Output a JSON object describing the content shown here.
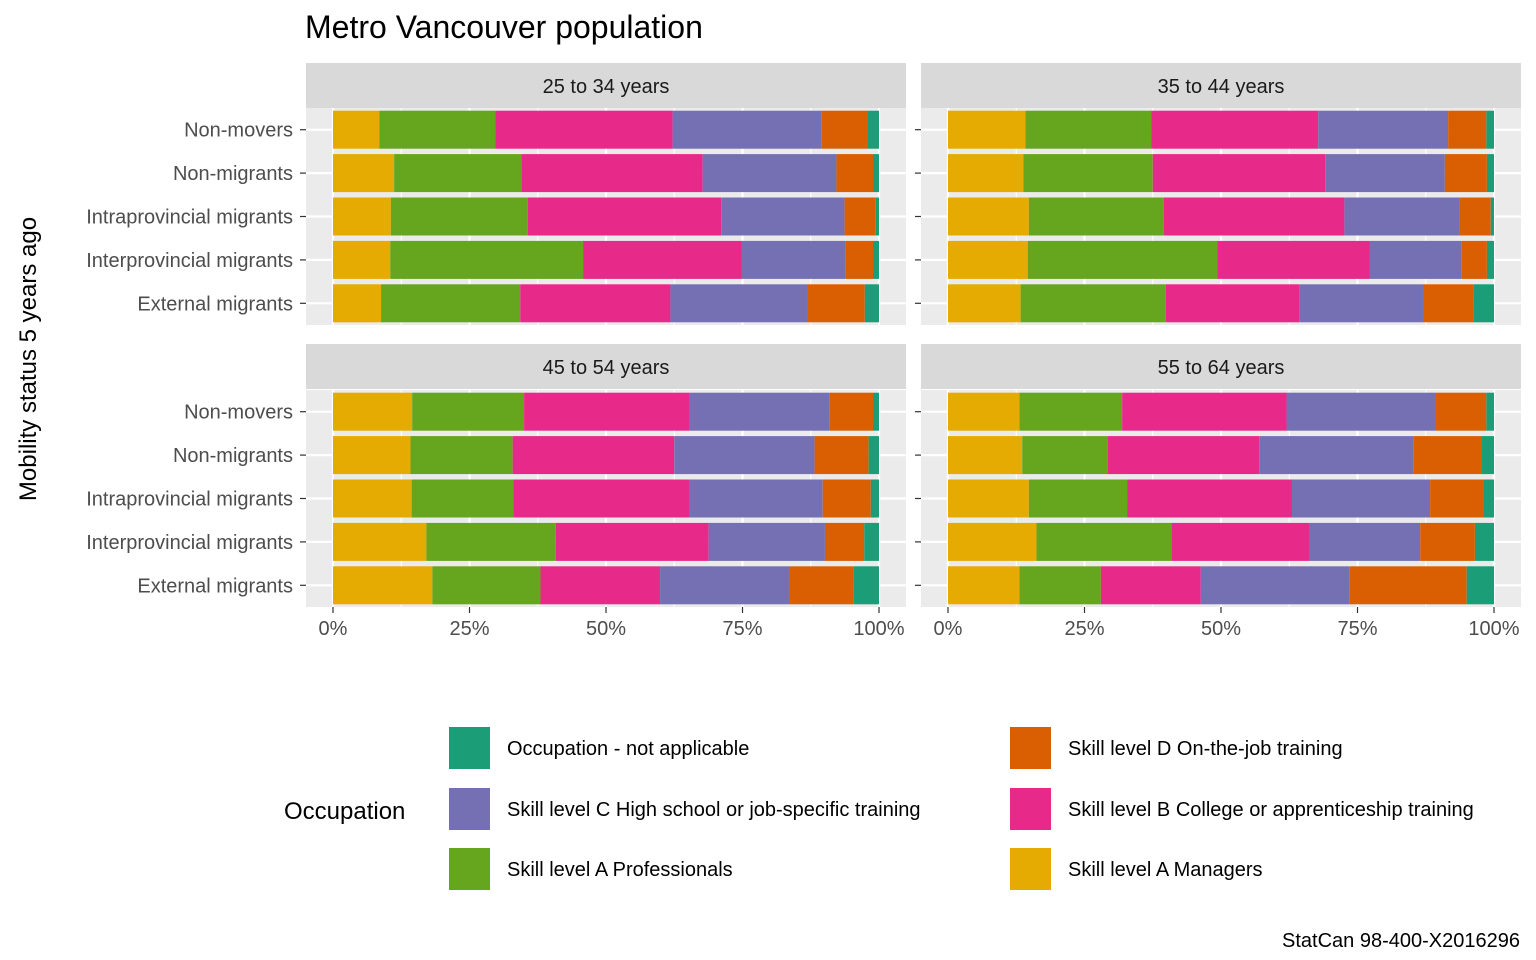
{
  "chart_data": {
    "type": "bar",
    "orientation": "horizontal",
    "stacked": true,
    "normalized": true,
    "title": "Metro Vancouver population",
    "ylabel": "Mobility status 5 years ago",
    "xlabel": "",
    "xlim": [
      0,
      1
    ],
    "x_tick_labels": [
      "0%",
      "25%",
      "50%",
      "75%",
      "100%"
    ],
    "x_tick_values": [
      0,
      0.25,
      0.5,
      0.75,
      1
    ],
    "caption": "StatCan 98-400-X2016296",
    "categories": [
      "Non-movers",
      "Non-migrants",
      "Intraprovincial migrants",
      "Interprovincial migrants",
      "External migrants"
    ],
    "series_names": [
      "Skill level A Managers",
      "Skill level A Professionals",
      "Skill level B College or apprenticeship training",
      "Skill level C High school or job-specific training",
      "Skill level D On-the-job training",
      "Occupation - not applicable"
    ],
    "series_colors": [
      "#E6AB02",
      "#66A61E",
      "#E7298A",
      "#7570B3",
      "#D95F02",
      "#1B9E77"
    ],
    "legend": {
      "title": "Occupation",
      "position": "bottom",
      "entries": [
        {
          "label": "Occupation - not applicable",
          "color": "#1B9E77"
        },
        {
          "label": "Skill level D On-the-job training",
          "color": "#D95F02"
        },
        {
          "label": "Skill level C High school or job-specific training",
          "color": "#7570B3"
        },
        {
          "label": "Skill level B College or apprenticeship training",
          "color": "#E7298A"
        },
        {
          "label": "Skill level A Professionals",
          "color": "#66A61E"
        },
        {
          "label": "Skill level A Managers",
          "color": "#E6AB02"
        }
      ]
    },
    "facets": [
      {
        "label": "25 to 34 years",
        "rows": [
          {
            "category": "Non-movers",
            "values": [
              0.085,
              0.212,
              0.325,
              0.273,
              0.084,
              0.021
            ]
          },
          {
            "category": "Non-migrants",
            "values": [
              0.112,
              0.233,
              0.332,
              0.245,
              0.067,
              0.011
            ]
          },
          {
            "category": "Intraprovincial migrants",
            "values": [
              0.106,
              0.251,
              0.354,
              0.226,
              0.057,
              0.006
            ]
          },
          {
            "category": "Interprovincial migrants",
            "values": [
              0.105,
              0.353,
              0.291,
              0.189,
              0.051,
              0.011
            ]
          },
          {
            "category": "External migrants",
            "values": [
              0.088,
              0.255,
              0.275,
              0.251,
              0.105,
              0.026
            ]
          }
        ]
      },
      {
        "label": "35 to 44 years",
        "rows": [
          {
            "category": "Non-movers",
            "values": [
              0.142,
              0.23,
              0.306,
              0.238,
              0.07,
              0.014
            ]
          },
          {
            "category": "Non-migrants",
            "values": [
              0.138,
              0.237,
              0.316,
              0.219,
              0.077,
              0.013
            ]
          },
          {
            "category": "Intraprovincial migrants",
            "values": [
              0.148,
              0.247,
              0.331,
              0.211,
              0.057,
              0.006
            ]
          },
          {
            "category": "Interprovincial migrants",
            "values": [
              0.146,
              0.347,
              0.279,
              0.169,
              0.046,
              0.013
            ]
          },
          {
            "category": "External migrants",
            "values": [
              0.133,
              0.266,
              0.244,
              0.227,
              0.092,
              0.038
            ]
          }
        ]
      },
      {
        "label": "45 to 54 years",
        "rows": [
          {
            "category": "Non-movers",
            "values": [
              0.145,
              0.205,
              0.302,
              0.257,
              0.08,
              0.011
            ]
          },
          {
            "category": "Non-migrants",
            "values": [
              0.142,
              0.187,
              0.296,
              0.257,
              0.099,
              0.019
            ]
          },
          {
            "category": "Intraprovincial migrants",
            "values": [
              0.144,
              0.186,
              0.322,
              0.245,
              0.088,
              0.015
            ]
          },
          {
            "category": "Interprovincial migrants",
            "values": [
              0.171,
              0.237,
              0.28,
              0.213,
              0.072,
              0.027
            ]
          },
          {
            "category": "External migrants",
            "values": [
              0.182,
              0.198,
              0.219,
              0.237,
              0.118,
              0.046
            ]
          }
        ]
      },
      {
        "label": "55 to 64 years",
        "rows": [
          {
            "category": "Non-movers",
            "values": [
              0.131,
              0.188,
              0.301,
              0.272,
              0.094,
              0.014
            ]
          },
          {
            "category": "Non-migrants",
            "values": [
              0.136,
              0.157,
              0.277,
              0.282,
              0.126,
              0.022
            ]
          },
          {
            "category": "Intraprovincial migrants",
            "values": [
              0.148,
              0.18,
              0.302,
              0.253,
              0.097,
              0.02
            ]
          },
          {
            "category": "Interprovincial migrants",
            "values": [
              0.162,
              0.247,
              0.253,
              0.203,
              0.1,
              0.035
            ]
          },
          {
            "category": "External migrants",
            "values": [
              0.131,
              0.149,
              0.183,
              0.272,
              0.215,
              0.05
            ]
          }
        ]
      }
    ]
  }
}
